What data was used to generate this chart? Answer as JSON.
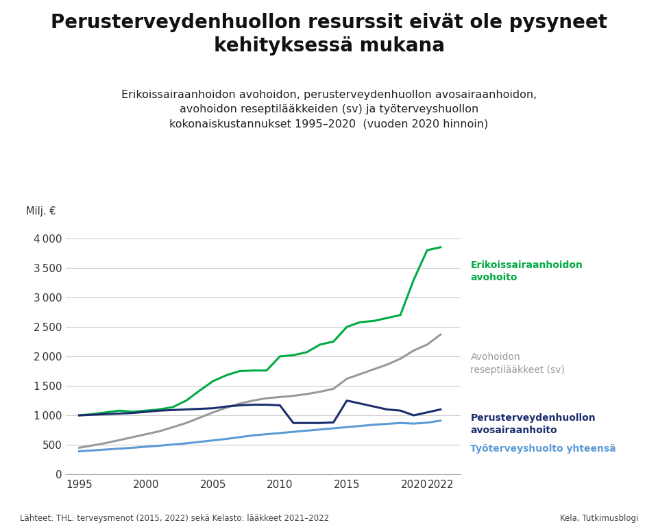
{
  "title": "Perusterveydenhuollon resurssit eivät ole pysyneet\nkehityksessä mukana",
  "subtitle": "Erikoissairaanhoidon avohoidon, perusterveydenhuollon avosairaanhoidon,\navohoidon reseptilääkkeiden (sv) ja työterveyshuollon\nkokonaiskustannukset 1995–2020  (vuoden 2020 hinnoin)",
  "ylabel": "Milj. €",
  "footnote": "Lähteet: THL: terveysmenot (2015, 2022) sekä Kelasto: lääkkeet 2021–2022",
  "footnote_right": "Kela, Tutkimusblogi",
  "background_color": "#ffffff",
  "ylim": [
    0,
    4200
  ],
  "yticks": [
    0,
    500,
    1000,
    1500,
    2000,
    2500,
    3000,
    3500,
    4000
  ],
  "xticks": [
    1995,
    2000,
    2005,
    2010,
    2015,
    2020,
    2022
  ],
  "series": {
    "erikoissairaanhoito": {
      "label": "Erikoissairaanhoidon\navohoito",
      "color": "#00aa44",
      "linewidth": 2.2,
      "years": [
        1995,
        1996,
        1997,
        1998,
        1999,
        2000,
        2001,
        2002,
        2003,
        2004,
        2005,
        2006,
        2007,
        2008,
        2009,
        2010,
        2011,
        2012,
        2013,
        2014,
        2015,
        2016,
        2017,
        2018,
        2019,
        2020,
        2021,
        2022
      ],
      "values": [
        1000,
        1020,
        1050,
        1080,
        1060,
        1080,
        1100,
        1140,
        1250,
        1420,
        1580,
        1680,
        1750,
        1760,
        1760,
        2000,
        2020,
        2070,
        2200,
        2250,
        2500,
        2580,
        2600,
        2650,
        2700,
        3300,
        3800,
        3850
      ]
    },
    "reseptilaakkeet": {
      "label": "Avohoidon\nreseptilääkkeet (sv)",
      "color": "#999999",
      "linewidth": 2.2,
      "years": [
        1995,
        1996,
        1997,
        1998,
        1999,
        2000,
        2001,
        2002,
        2003,
        2004,
        2005,
        2006,
        2007,
        2008,
        2009,
        2010,
        2011,
        2012,
        2013,
        2014,
        2015,
        2016,
        2017,
        2018,
        2019,
        2020,
        2021,
        2022
      ],
      "values": [
        450,
        490,
        530,
        580,
        630,
        680,
        730,
        800,
        870,
        960,
        1050,
        1130,
        1200,
        1250,
        1290,
        1310,
        1330,
        1360,
        1400,
        1450,
        1620,
        1700,
        1780,
        1860,
        1960,
        2100,
        2200,
        2370
      ]
    },
    "perusterveydenhuolto": {
      "label": "Perusterveydenhuollon\navosairaanhoito",
      "color": "#1a2d6e",
      "linewidth": 2.2,
      "years": [
        1995,
        1996,
        1997,
        1998,
        1999,
        2000,
        2001,
        2002,
        2003,
        2004,
        2005,
        2006,
        2007,
        2008,
        2009,
        2010,
        2011,
        2012,
        2013,
        2014,
        2015,
        2016,
        2017,
        2018,
        2019,
        2020,
        2021,
        2022
      ],
      "values": [
        1000,
        1010,
        1020,
        1030,
        1040,
        1060,
        1080,
        1090,
        1100,
        1110,
        1120,
        1150,
        1170,
        1180,
        1180,
        1170,
        870,
        870,
        870,
        880,
        1250,
        1200,
        1150,
        1100,
        1080,
        1000,
        1050,
        1100
      ]
    },
    "tyoterveyshuolto": {
      "label": "Työterveyshuolto yhteensä",
      "color": "#5b9bd5",
      "linewidth": 2.2,
      "years": [
        1995,
        1996,
        1997,
        1998,
        1999,
        2000,
        2001,
        2002,
        2003,
        2004,
        2005,
        2006,
        2007,
        2008,
        2009,
        2010,
        2011,
        2012,
        2013,
        2014,
        2015,
        2016,
        2017,
        2018,
        2019,
        2020,
        2021,
        2022
      ],
      "values": [
        390,
        405,
        420,
        435,
        450,
        468,
        485,
        505,
        525,
        550,
        575,
        600,
        630,
        660,
        680,
        700,
        720,
        740,
        760,
        780,
        800,
        820,
        840,
        855,
        870,
        860,
        875,
        910
      ]
    }
  }
}
